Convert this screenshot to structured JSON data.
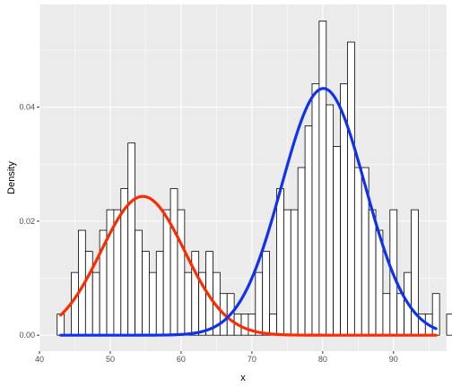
{
  "chart_data": {
    "type": "bar",
    "xlabel": "x",
    "ylabel": "Density",
    "xlim": [
      40,
      97.5
    ],
    "ylim": [
      -0.0028,
      0.058
    ],
    "x_ticks": [
      40,
      50,
      60,
      70,
      80,
      90
    ],
    "x_tick_labels": [
      "40",
      "50",
      "60",
      "70",
      "80",
      "90"
    ],
    "y_ticks": [
      0.0,
      0.02,
      0.04
    ],
    "y_tick_labels": [
      "0.00",
      "0.02",
      "0.04"
    ],
    "grid": true,
    "histogram": {
      "bin_width": 1,
      "bin_start": 42.5,
      "densities": [
        0.0037,
        0.0,
        0.011,
        0.0184,
        0.0147,
        0.011,
        0.0184,
        0.022,
        0.022,
        0.0257,
        0.0337,
        0.0184,
        0.0147,
        0.011,
        0.0147,
        0.022,
        0.0257,
        0.022,
        0.011,
        0.0147,
        0.011,
        0.0147,
        0.011,
        0.0073,
        0.0073,
        0.0037,
        0.0037,
        0.0037,
        0.011,
        0.0147,
        0.0037,
        0.0257,
        0.022,
        0.022,
        0.0294,
        0.0367,
        0.0441,
        0.0551,
        0.0404,
        0.0331,
        0.0441,
        0.0514,
        0.0294,
        0.0294,
        0.022,
        0.0184,
        0.0073,
        0.022,
        0.0073,
        0.011,
        0.022,
        0.0037,
        0.0037,
        0.0073,
        0.0,
        0.0037
      ]
    },
    "series": [
      {
        "name": "",
        "kind": "normal-density",
        "mean": 54.6,
        "sd": 5.9,
        "weight": 0.36,
        "x_range": [
          43,
          96
        ],
        "color": "#ff2a00"
      },
      {
        "name": "",
        "kind": "normal-density",
        "mean": 80.1,
        "sd": 5.9,
        "weight": 0.64,
        "x_range": [
          43,
          96
        ],
        "color": "#0f32f0"
      }
    ],
    "colors": {
      "panel_background": "#ebebeb",
      "grid_major": "#ffffff",
      "bar_fill": "#ffffff",
      "bar_outline": "#000000"
    }
  }
}
